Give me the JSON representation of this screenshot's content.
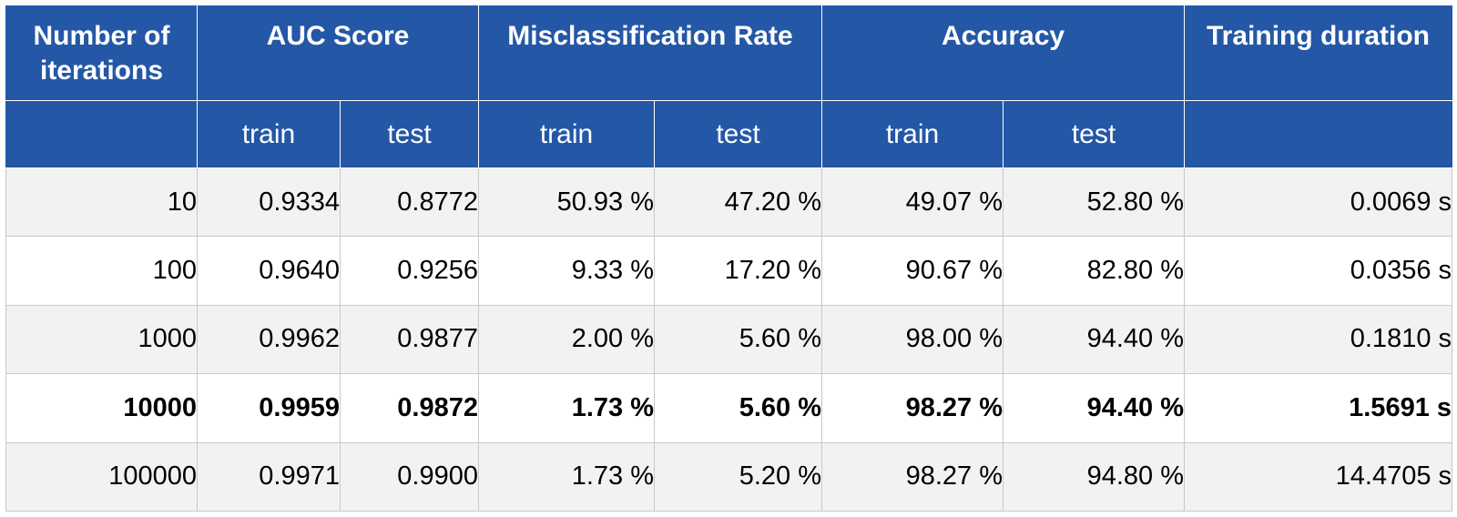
{
  "table": {
    "headers": {
      "iterations": "Number of iterations",
      "auc": "AUC Score",
      "misclass": "Misclassification Rate",
      "accuracy": "Accuracy",
      "duration": "Training duration"
    },
    "subheaders": [
      "train",
      "test",
      "train",
      "test",
      "train",
      "test"
    ],
    "rows": [
      {
        "iterations": "10",
        "auc_train": "0.9334",
        "auc_test": "0.8772",
        "mis_train": "50.93 %",
        "mis_test": "47.20 %",
        "acc_train": "49.07 %",
        "acc_test": "52.80 %",
        "duration": "0.0069 s",
        "bold": false
      },
      {
        "iterations": "100",
        "auc_train": "0.9640",
        "auc_test": "0.9256",
        "mis_train": "9.33 %",
        "mis_test": "17.20 %",
        "acc_train": "90.67 %",
        "acc_test": "82.80 %",
        "duration": "0.0356 s",
        "bold": false
      },
      {
        "iterations": "1000",
        "auc_train": "0.9962",
        "auc_test": "0.9877",
        "mis_train": "2.00 %",
        "mis_test": "5.60 %",
        "acc_train": "98.00 %",
        "acc_test": "94.40 %",
        "duration": "0.1810 s",
        "bold": false
      },
      {
        "iterations": "10000",
        "auc_train": "0.9959",
        "auc_test": "0.9872",
        "mis_train": "1.73 %",
        "mis_test": "5.60 %",
        "acc_train": "98.27 %",
        "acc_test": "94.40 %",
        "duration": "1.5691 s",
        "bold": true
      },
      {
        "iterations": "100000",
        "auc_train": "0.9971",
        "auc_test": "0.9900",
        "mis_train": "1.73 %",
        "mis_test": "5.20 %",
        "acc_train": "98.27 %",
        "acc_test": "94.80 %",
        "duration": "14.4705 s",
        "bold": false
      }
    ]
  }
}
